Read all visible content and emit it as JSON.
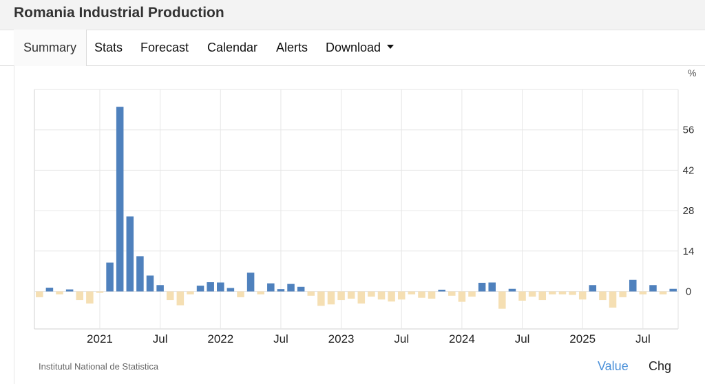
{
  "page": {
    "title": "Romania Industrial Production"
  },
  "tabs": [
    {
      "label": "Summary",
      "active": true
    },
    {
      "label": "Stats"
    },
    {
      "label": "Forecast"
    },
    {
      "label": "Calendar"
    },
    {
      "label": "Alerts"
    },
    {
      "label": "Download",
      "has_dropdown": true,
      "icon": "caret-down-icon"
    }
  ],
  "footer": {
    "source": "Institutul National de Statistica",
    "toggle_value": "Value",
    "toggle_chg": "Chg"
  },
  "colors": {
    "positive": "#4f81bd",
    "negative": "#f5dfb3",
    "grid": "#e6e6e6",
    "active_toggle": "#4a90d9"
  },
  "chart_data": {
    "type": "bar",
    "unit": "%",
    "x_ticks": [
      "2021",
      "Jul",
      "2022",
      "Jul",
      "2023",
      "Jul",
      "2024",
      "Jul",
      "2025",
      "Jul"
    ],
    "y_ticks": [
      "0",
      "14",
      "28",
      "42",
      "56"
    ],
    "ylim": [
      -13,
      70
    ],
    "grid": true,
    "y_axis_position": "right",
    "start_period": "2020-07",
    "values": [
      -2,
      1.3,
      -1,
      0.7,
      -3,
      -4.2,
      -0.5,
      10,
      64,
      26,
      12.2,
      5.5,
      2.2,
      -3,
      -4.8,
      -1,
      2,
      3.2,
      3.1,
      1.2,
      -2,
      6.5,
      -1,
      2.8,
      0.8,
      2.6,
      1.6,
      -1.5,
      -5,
      -4.5,
      -3,
      -2.5,
      -4.2,
      -1.8,
      -2.8,
      -3.5,
      -2.8,
      -1,
      -2.2,
      -2.5,
      0.6,
      -1.5,
      -3.6,
      -1.8,
      3,
      3.1,
      -6,
      0.9,
      -3.2,
      -1.8,
      -3,
      -1,
      -1,
      -1.2,
      -2.8,
      2.2,
      -3,
      -5.6,
      -2,
      4,
      -1,
      2.2,
      -1,
      0.9
    ]
  }
}
